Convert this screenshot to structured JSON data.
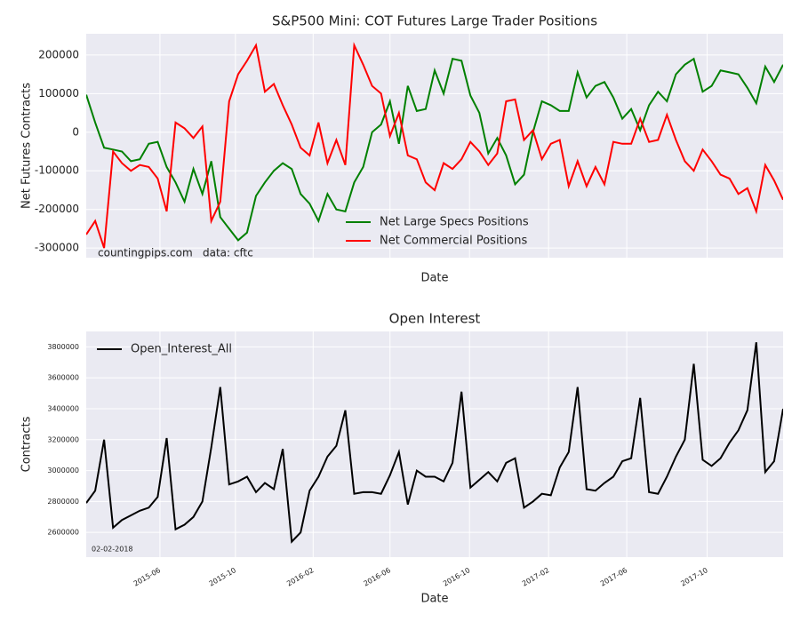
{
  "chart_data": [
    {
      "type": "line",
      "title": "S&P500 Mini: COT Futures Large Trader Positions",
      "xlabel": "Date",
      "ylabel": "Net Futures Contracts",
      "xlim": [
        0,
        78
      ],
      "xticks": [
        8.25,
        16.7,
        25.4,
        34,
        42.9,
        51.75,
        60.5,
        69.5
      ],
      "ylim": [
        -325000,
        255000
      ],
      "yticks": [
        -300000,
        -200000,
        -100000,
        0,
        100000,
        200000
      ],
      "grid": true,
      "legend": "lower center",
      "annotations": [
        "countingpips.com",
        "data: cftc"
      ],
      "series": [
        {
          "name": "Net Large Specs Positions",
          "color": "#008000",
          "values": [
            97000,
            25000,
            -40000,
            -45000,
            -50000,
            -75000,
            -70000,
            -30000,
            -25000,
            -90000,
            -130000,
            -180000,
            -95000,
            -160000,
            -75000,
            -220000,
            -250000,
            -280000,
            -260000,
            -165000,
            -130000,
            -100000,
            -80000,
            -95000,
            -160000,
            -185000,
            -230000,
            -160000,
            -200000,
            -205000,
            -130000,
            -90000,
            0,
            20000,
            80000,
            -30000,
            120000,
            55000,
            60000,
            160000,
            100000,
            190000,
            185000,
            95000,
            50000,
            -55000,
            -15000,
            -60000,
            -135000,
            -110000,
            0,
            80000,
            70000,
            55000,
            55000,
            155000,
            90000,
            120000,
            130000,
            90000,
            35000,
            60000,
            5000,
            70000,
            105000,
            80000,
            150000,
            175000,
            190000,
            105000,
            120000,
            160000,
            155000,
            150000,
            115000,
            75000,
            170000,
            130000,
            175000
          ]
        },
        {
          "name": "Net Commercial Positions",
          "color": "#ff0000",
          "values": [
            -265000,
            -230000,
            -300000,
            -50000,
            -80000,
            -100000,
            -85000,
            -90000,
            -120000,
            -205000,
            25000,
            10000,
            -15000,
            15000,
            -230000,
            -180000,
            80000,
            150000,
            185000,
            225000,
            105000,
            125000,
            70000,
            20000,
            -40000,
            -60000,
            25000,
            -80000,
            -20000,
            -85000,
            225000,
            175000,
            120000,
            100000,
            -10000,
            50000,
            -60000,
            -70000,
            -130000,
            -150000,
            -80000,
            -95000,
            -70000,
            -25000,
            -50000,
            -85000,
            -55000,
            80000,
            85000,
            -20000,
            5000,
            -70000,
            -30000,
            -20000,
            -140000,
            -75000,
            -140000,
            -90000,
            -135000,
            -25000,
            -30000,
            -30000,
            35000,
            -25000,
            -20000,
            45000,
            -20000,
            -75000,
            -100000,
            -45000,
            -75000,
            -110000,
            -120000,
            -160000,
            -145000,
            -205000,
            -85000,
            -125000,
            -175000
          ]
        }
      ]
    },
    {
      "type": "line",
      "title": "Open Interest",
      "xlabel": "Date",
      "ylabel": "Contracts",
      "xlim": [
        0,
        78
      ],
      "xticks": [
        {
          "value": 8.25,
          "label": "2015-06"
        },
        {
          "value": 16.7,
          "label": "2015-10"
        },
        {
          "value": 25.4,
          "label": "2016-02"
        },
        {
          "value": 34,
          "label": "2016-06"
        },
        {
          "value": 42.9,
          "label": "2016-10"
        },
        {
          "value": 51.75,
          "label": "2017-02"
        },
        {
          "value": 60.5,
          "label": "2017-06"
        },
        {
          "value": 69.5,
          "label": "2017-10"
        }
      ],
      "ylim": [
        2440000,
        3900000
      ],
      "yticks": [
        2600000,
        2800000,
        3000000,
        3200000,
        3400000,
        3600000,
        3800000
      ],
      "grid": true,
      "legend": "upper left",
      "annotations": [
        "02-02-2018"
      ],
      "series": [
        {
          "name": "Open_Interest_All",
          "color": "#000000",
          "values": [
            2790000,
            2870000,
            3200000,
            2630000,
            2680000,
            2710000,
            2740000,
            2760000,
            2830000,
            3210000,
            2620000,
            2650000,
            2700000,
            2800000,
            3150000,
            3540000,
            2910000,
            2930000,
            2960000,
            2860000,
            2920000,
            2880000,
            3140000,
            2540000,
            2600000,
            2870000,
            2960000,
            3090000,
            3160000,
            3390000,
            2850000,
            2860000,
            2860000,
            2850000,
            2970000,
            3120000,
            2780000,
            3000000,
            2960000,
            2960000,
            2930000,
            3050000,
            3510000,
            2890000,
            2940000,
            2990000,
            2930000,
            3050000,
            3080000,
            2760000,
            2800000,
            2850000,
            2840000,
            3020000,
            3120000,
            3540000,
            2880000,
            2870000,
            2920000,
            2960000,
            3060000,
            3080000,
            3470000,
            2860000,
            2850000,
            2960000,
            3090000,
            3200000,
            3690000,
            3070000,
            3030000,
            3080000,
            3180000,
            3260000,
            3390000,
            3830000,
            2990000,
            3060000,
            3400000
          ]
        }
      ]
    }
  ]
}
